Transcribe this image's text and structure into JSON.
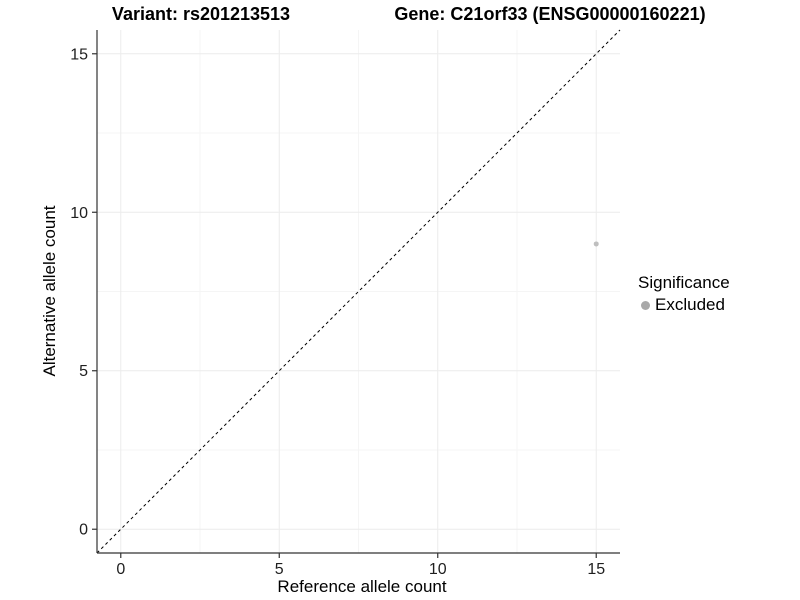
{
  "header": {
    "title_left": "Variant: rs201213513",
    "title_right": "Gene: C21orf33 (ENSG00000160221)"
  },
  "chart_data": {
    "type": "scatter",
    "title": "Variant: rs201213513 — Gene: C21orf33 (ENSG00000160221)",
    "xlabel": "Reference allele count",
    "ylabel": "Alternative allele count",
    "xlim": [
      -0.75,
      15.75
    ],
    "ylim": [
      -0.75,
      15.75
    ],
    "x_ticks": [
      0,
      5,
      10,
      15
    ],
    "y_ticks": [
      0,
      5,
      10,
      15
    ],
    "x_minor_ticks": [
      2.5,
      7.5,
      12.5
    ],
    "y_minor_ticks": [
      2.5,
      7.5,
      12.5
    ],
    "grid": "major+minor",
    "points": [
      {
        "x": 15,
        "y": 9,
        "series": "Excluded"
      }
    ],
    "reference_line": {
      "type": "identity",
      "slope": 1,
      "intercept": 0,
      "style": "dashed",
      "color": "#000000"
    },
    "legend": {
      "title": "Significance",
      "position": "right",
      "entries": [
        {
          "label": "Excluded",
          "color": "#a9a9a9"
        }
      ]
    },
    "colors": {
      "point": "#bfbfbf",
      "grid_major": "#ececec",
      "grid_minor": "#f5f5f5",
      "axis_line": "#333333",
      "tick_text": "#1f1f1f"
    }
  }
}
